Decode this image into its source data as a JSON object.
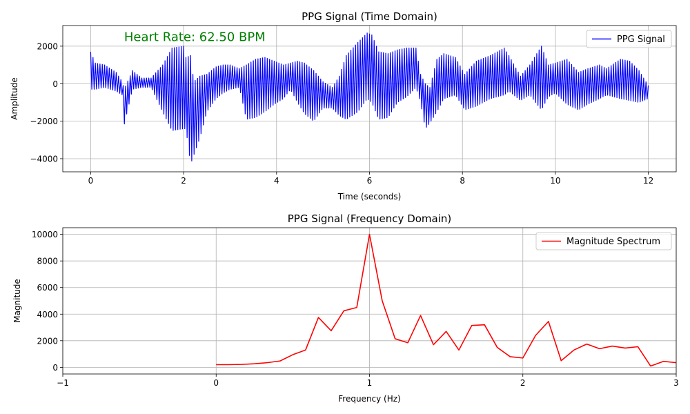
{
  "chart_data": [
    {
      "type": "line",
      "title": "PPG Signal (Time Domain)",
      "xlabel": "Time (seconds)",
      "ylabel": "Amplitude",
      "xlim": [
        -0.6,
        12.6
      ],
      "ylim": [
        -4700,
        3100
      ],
      "xticks": [
        0,
        2,
        4,
        6,
        8,
        10,
        12
      ],
      "yticks": [
        -4000,
        -2000,
        0,
        2000
      ],
      "ytick_labels": [
        "−4000",
        "−2000",
        "0",
        "2000"
      ],
      "grid": true,
      "legend_position": "top-right",
      "annotation": {
        "text": "Heart Rate: 62.50 BPM",
        "x": 0.72,
        "y": 2500,
        "color": "#008000"
      },
      "series": [
        {
          "name": "PPG Signal",
          "color": "#0000ff",
          "envelope": {
            "x": [
              0,
              0.1,
              0.3,
              0.55,
              0.68,
              0.72,
              0.9,
              1.1,
              1.3,
              1.55,
              1.75,
              2.0,
              2.05,
              2.15,
              2.22,
              2.35,
              2.5,
              2.7,
              2.85,
              3.0,
              3.2,
              3.35,
              3.55,
              3.75,
              3.95,
              4.15,
              4.3,
              4.45,
              4.6,
              4.8,
              5.0,
              5.2,
              5.35,
              5.5,
              5.75,
              5.95,
              6.05,
              6.2,
              6.4,
              6.6,
              6.8,
              7.0,
              7.1,
              7.2,
              7.3,
              7.45,
              7.6,
              7.85,
              8.05,
              8.3,
              8.6,
              8.9,
              9.0,
              9.25,
              9.45,
              9.7,
              9.85,
              10.0,
              10.25,
              10.5,
              10.7,
              10.95,
              11.1,
              11.4,
              11.6,
              11.8,
              12.0
            ],
            "upper": [
              1700,
              1100,
              1000,
              600,
              100,
              -300,
              700,
              300,
              300,
              1000,
              1900,
              2000,
              1400,
              1500,
              100,
              400,
              500,
              900,
              1000,
              1000,
              800,
              1000,
              1300,
              1400,
              1200,
              1000,
              1100,
              1200,
              1100,
              700,
              100,
              -200,
              400,
              1500,
              2200,
              2700,
              2600,
              1700,
              1600,
              1800,
              1900,
              1900,
              500,
              0,
              -200,
              1300,
              1600,
              1400,
              500,
              1200,
              1500,
              1900,
              1500,
              400,
              1000,
              2000,
              1000,
              1100,
              1300,
              600,
              800,
              1000,
              800,
              1300,
              1200,
              700,
              -100
            ],
            "lower": [
              -300,
              -300,
              -200,
              -400,
              -600,
              -2200,
              -300,
              -200,
              -200,
              -1500,
              -2500,
              -2400,
              -2400,
              -4300,
              -3800,
              -2900,
              -1500,
              -800,
              -500,
              -300,
              -200,
              -1900,
              -1800,
              -1500,
              -1100,
              -800,
              -300,
              -1000,
              -1600,
              -2000,
              -1300,
              -1300,
              -1700,
              -1900,
              -1500,
              -800,
              -1000,
              -1900,
              -1800,
              -1000,
              -700,
              -200,
              -1000,
              -2400,
              -2100,
              -1500,
              -800,
              -600,
              -1400,
              -1200,
              -800,
              -600,
              -400,
              -900,
              -600,
              -1400,
              -700,
              -500,
              -1100,
              -1400,
              -1100,
              -800,
              -600,
              -800,
              -900,
              -1000,
              -800
            ]
          }
        }
      ]
    },
    {
      "type": "line",
      "title": "PPG Signal (Frequency Domain)",
      "xlabel": "Frequency (Hz)",
      "ylabel": "Magnitude",
      "xlim": [
        -1,
        3
      ],
      "ylim": [
        -500,
        10500
      ],
      "xticks": [
        -1,
        0,
        1,
        2,
        3
      ],
      "xtick_labels": [
        "−1",
        "0",
        "1",
        "2",
        "3"
      ],
      "yticks": [
        0,
        2000,
        4000,
        6000,
        8000,
        10000
      ],
      "grid": true,
      "legend_position": "top-right",
      "series": [
        {
          "name": "Magnitude Spectrum",
          "color": "#ff0000",
          "x": [
            0,
            0.083,
            0.167,
            0.25,
            0.333,
            0.417,
            0.5,
            0.583,
            0.667,
            0.75,
            0.833,
            0.917,
            1.0,
            1.083,
            1.167,
            1.25,
            1.333,
            1.417,
            1.5,
            1.583,
            1.667,
            1.75,
            1.833,
            1.917,
            2.0,
            2.083,
            2.167,
            2.25,
            2.333,
            2.417,
            2.5,
            2.583,
            2.667,
            2.75,
            2.833,
            2.917,
            3.0
          ],
          "y": [
            200,
            200,
            220,
            270,
            350,
            480,
            950,
            1300,
            3750,
            2750,
            4250,
            4500,
            10000,
            5000,
            2150,
            1850,
            3900,
            1700,
            2700,
            1300,
            3150,
            3200,
            1500,
            800,
            700,
            2400,
            3450,
            500,
            1300,
            1750,
            1400,
            1600,
            1450,
            1550,
            100,
            450,
            350
          ]
        }
      ]
    }
  ]
}
